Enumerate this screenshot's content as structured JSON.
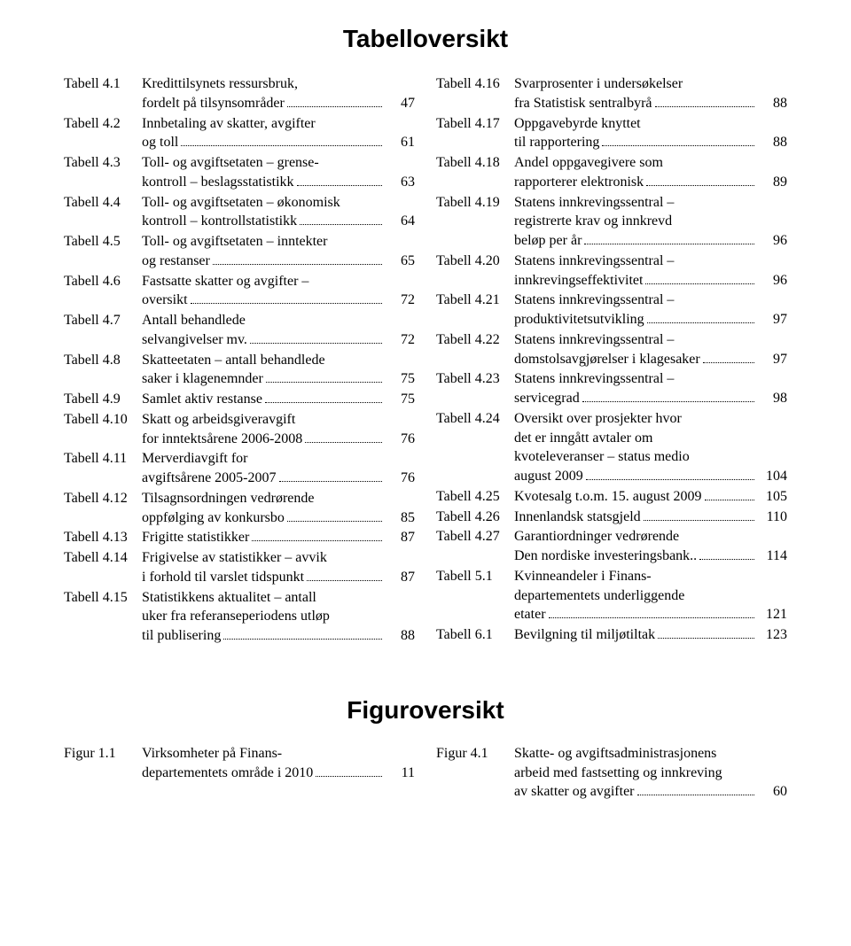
{
  "tabell_heading": "Tabelloversikt",
  "figur_heading": "Figuroversikt",
  "left": [
    {
      "label": "Tabell 4.1",
      "lines": [
        "Kredittilsynets ressursbruk,",
        "fordelt på tilsynsområder"
      ],
      "page": "47"
    },
    {
      "label": "Tabell 4.2",
      "lines": [
        "Innbetaling av skatter, avgifter",
        "og toll"
      ],
      "page": "61"
    },
    {
      "label": "Tabell 4.3",
      "lines": [
        "Toll- og avgiftsetaten – grense-",
        "kontroll – beslagsstatistikk"
      ],
      "page": "63"
    },
    {
      "label": "Tabell 4.4",
      "lines": [
        "Toll- og avgiftsetaten – økonomisk",
        "kontroll – kontrollstatistikk"
      ],
      "page": "64"
    },
    {
      "label": "Tabell 4.5",
      "lines": [
        "Toll- og avgiftsetaten – inntekter",
        "og restanser"
      ],
      "page": "65"
    },
    {
      "label": "Tabell 4.6",
      "lines": [
        "Fastsatte skatter og avgifter –",
        "oversikt"
      ],
      "page": "72"
    },
    {
      "label": "Tabell 4.7",
      "lines": [
        "Antall behandlede",
        "selvangivelser mv."
      ],
      "page": "72"
    },
    {
      "label": "Tabell 4.8",
      "lines": [
        "Skatteetaten – antall behandlede",
        "saker i klagenemnder"
      ],
      "page": "75"
    },
    {
      "label": "Tabell 4.9",
      "lines": [
        "Samlet aktiv restanse"
      ],
      "page": "75"
    },
    {
      "label": "Tabell 4.10",
      "lines": [
        "Skatt og arbeidsgiveravgift",
        "for inntektsårene 2006-2008"
      ],
      "page": "76"
    },
    {
      "label": "Tabell 4.11",
      "lines": [
        "Merverdiavgift for",
        "avgiftsårene 2005-2007"
      ],
      "page": "76"
    },
    {
      "label": "Tabell 4.12",
      "lines": [
        "Tilsagnsordningen vedrørende",
        "oppfølging av konkursbo"
      ],
      "page": "85"
    },
    {
      "label": "Tabell 4.13",
      "lines": [
        "Frigitte statistikker"
      ],
      "page": "87"
    },
    {
      "label": "Tabell 4.14",
      "lines": [
        "Frigivelse av statistikker – avvik",
        "i forhold til varslet tidspunkt"
      ],
      "page": "87"
    },
    {
      "label": "Tabell 4.15",
      "lines": [
        "Statistikkens aktualitet – antall",
        "uker fra referanseperiodens utløp",
        "til publisering"
      ],
      "page": "88"
    }
  ],
  "right": [
    {
      "label": "Tabell 4.16",
      "lines": [
        "Svarprosenter i undersøkelser",
        "fra Statistisk sentralbyrå"
      ],
      "page": "88"
    },
    {
      "label": "Tabell 4.17",
      "lines": [
        "Oppgavebyrde knyttet",
        "til rapportering"
      ],
      "page": "88"
    },
    {
      "label": "Tabell 4.18",
      "lines": [
        "Andel oppgavegivere som",
        "rapporterer elektronisk"
      ],
      "page": "89"
    },
    {
      "label": "Tabell 4.19",
      "lines": [
        "Statens innkrevingssentral –",
        "registrerte krav og innkrevd",
        "beløp per år"
      ],
      "page": "96"
    },
    {
      "label": "Tabell 4.20",
      "lines": [
        "Statens innkrevingssentral –",
        "innkrevingseffektivitet"
      ],
      "page": "96"
    },
    {
      "label": "Tabell 4.21",
      "lines": [
        "Statens innkrevingssentral –",
        "produktivitetsutvikling"
      ],
      "page": "97"
    },
    {
      "label": "Tabell 4.22",
      "lines": [
        "Statens innkrevingssentral –",
        "domstolsavgjørelser i klagesaker"
      ],
      "page": "97"
    },
    {
      "label": "Tabell 4.23",
      "lines": [
        "Statens innkrevingssentral –",
        "servicegrad"
      ],
      "page": "98"
    },
    {
      "label": "Tabell 4.24",
      "lines": [
        "Oversikt over prosjekter hvor",
        "det er inngått avtaler om",
        "kvoteleveranser – status medio",
        "august 2009"
      ],
      "page": "104"
    },
    {
      "label": "Tabell 4.25",
      "lines": [
        "Kvotesalg t.o.m. 15. august 2009"
      ],
      "page": "105"
    },
    {
      "label": "Tabell 4.26",
      "lines": [
        "Innenlandsk statsgjeld"
      ],
      "page": "110"
    },
    {
      "label": "Tabell 4.27",
      "lines": [
        "Garantiordninger vedrørende",
        "Den nordiske investeringsbank.."
      ],
      "page": "114"
    },
    {
      "label": "Tabell 5.1",
      "lines": [
        "Kvinneandeler i Finans-",
        "departementets underliggende",
        "etater"
      ],
      "page": "121"
    },
    {
      "label": "Tabell 6.1",
      "lines": [
        "Bevilgning til miljøtiltak"
      ],
      "page": "123"
    }
  ],
  "fig_left": [
    {
      "label": "Figur 1.1",
      "lines": [
        "Virksomheter på Finans-",
        "departementets område i 2010"
      ],
      "page": "11"
    }
  ],
  "fig_right": [
    {
      "label": "Figur 4.1",
      "lines": [
        "Skatte- og avgiftsadministrasjonens",
        "arbeid med fastsetting og innkreving",
        "av skatter og avgifter"
      ],
      "page": "60"
    }
  ]
}
